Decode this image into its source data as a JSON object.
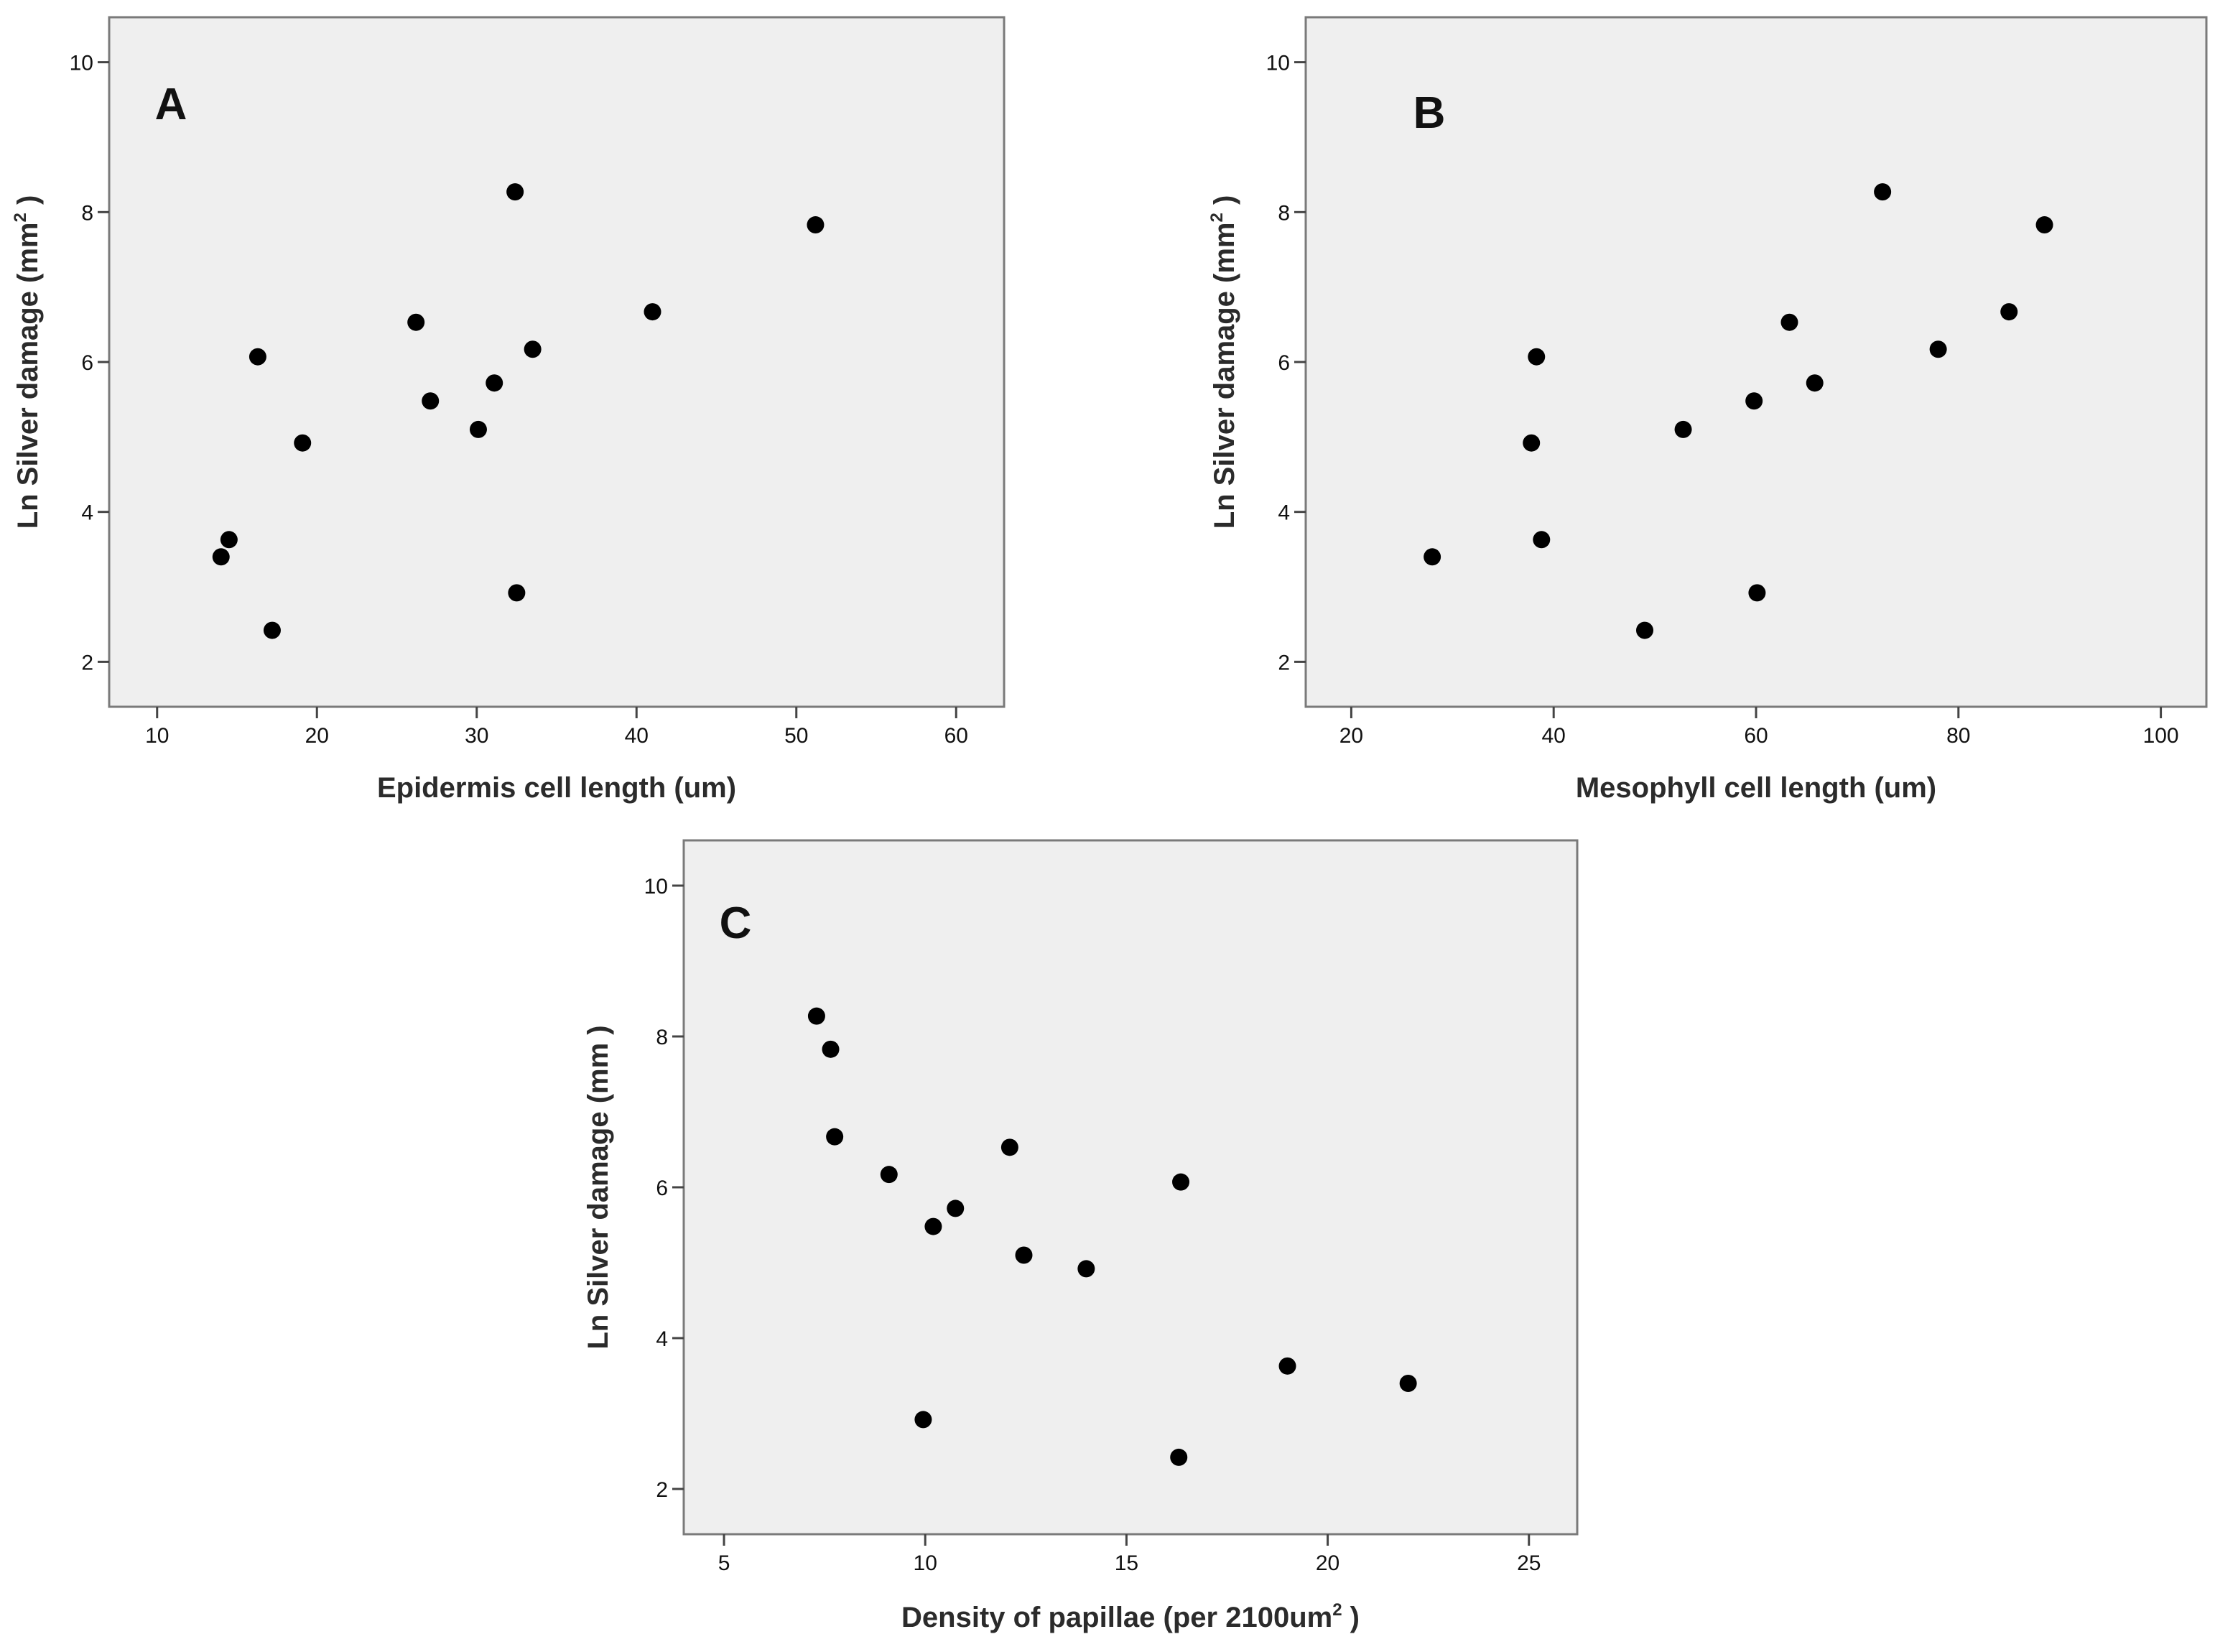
{
  "chart_data": [
    {
      "type": "scatter",
      "panel_label": "A",
      "xlabel": "Epidermis cell length (um)",
      "ylabel": "Ln Silver damage (mm",
      "ylabel_sup": "2",
      "ylabel_tail": ")",
      "xlim": [
        7,
        63
      ],
      "ylim": [
        1.4,
        10.6
      ],
      "xticks": [
        10,
        20,
        30,
        40,
        50,
        60
      ],
      "yticks": [
        2,
        4,
        6,
        8,
        10
      ],
      "grid": false,
      "series": [
        {
          "name": "panel A",
          "x": [
            14.0,
            14.5,
            16.3,
            17.2,
            19.1,
            26.2,
            27.1,
            30.1,
            31.1,
            32.4,
            32.5,
            33.5,
            41.0,
            51.2
          ],
          "y": [
            3.4,
            3.63,
            6.07,
            2.42,
            4.92,
            6.53,
            5.48,
            5.1,
            5.72,
            8.27,
            2.92,
            6.17,
            6.67,
            7.83
          ]
        }
      ]
    },
    {
      "type": "scatter",
      "panel_label": "B",
      "xlabel": "Mesophyll cell length (um)",
      "ylabel": "Ln Silver damage (mm",
      "ylabel_sup": "2",
      "ylabel_tail": ")",
      "xlim": [
        15.5,
        104.5
      ],
      "ylim": [
        1.4,
        10.6
      ],
      "xticks": [
        20,
        40,
        60,
        80,
        100
      ],
      "yticks": [
        2,
        4,
        6,
        8,
        10
      ],
      "grid": false,
      "series": [
        {
          "name": "panel B",
          "x": [
            28.0,
            37.8,
            38.3,
            38.8,
            49.0,
            52.8,
            59.8,
            60.1,
            63.3,
            65.8,
            72.5,
            78.0,
            85.0,
            88.5
          ],
          "y": [
            3.4,
            4.92,
            6.07,
            3.63,
            2.42,
            5.1,
            5.48,
            2.92,
            6.53,
            5.72,
            8.27,
            6.17,
            6.67,
            7.83
          ]
        }
      ]
    },
    {
      "type": "scatter",
      "panel_label": "C",
      "xlabel": "Density of papillae (per 2100um",
      "xlabel_sup": "2",
      "xlabel_tail": ")",
      "ylabel": "Ln Silver damage (mm  )",
      "xlim": [
        4,
        26.2
      ],
      "ylim": [
        1.4,
        10.6
      ],
      "xticks": [
        5,
        10,
        15,
        20,
        25
      ],
      "yticks": [
        2,
        4,
        6,
        8,
        10
      ],
      "grid": false,
      "series": [
        {
          "name": "panel C",
          "x": [
            7.3,
            7.65,
            7.75,
            9.1,
            9.95,
            10.2,
            10.75,
            12.1,
            12.45,
            14.0,
            16.3,
            16.35,
            19.0,
            22.0
          ],
          "y": [
            8.27,
            7.83,
            6.67,
            6.17,
            2.92,
            5.48,
            5.72,
            6.53,
            5.1,
            4.92,
            2.42,
            6.07,
            3.63,
            3.4
          ]
        }
      ]
    }
  ]
}
